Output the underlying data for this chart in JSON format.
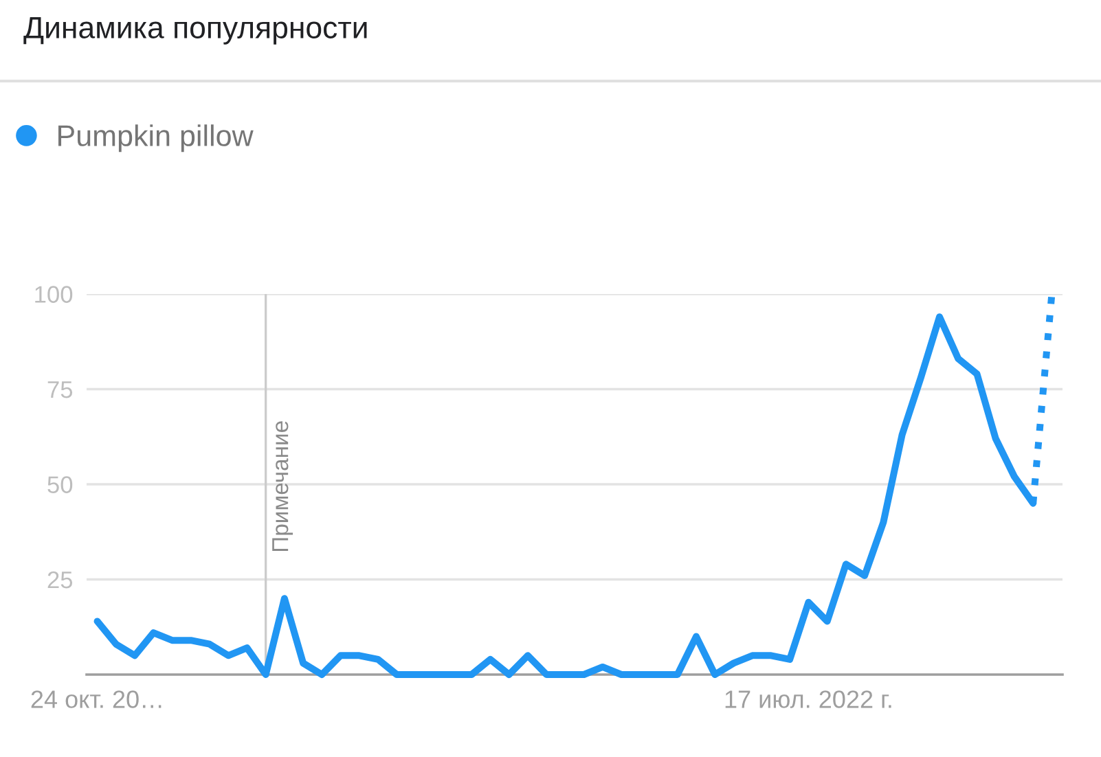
{
  "chart_data": {
    "type": "line",
    "title": "Динамика популярности",
    "x": [
      "2021-10-24",
      "2021-10-31",
      "2021-11-07",
      "2021-11-14",
      "2021-11-21",
      "2021-11-28",
      "2021-12-05",
      "2021-12-12",
      "2021-12-19",
      "2021-12-26",
      "2022-01-02",
      "2022-01-09",
      "2022-01-16",
      "2022-01-23",
      "2022-01-30",
      "2022-02-06",
      "2022-02-13",
      "2022-02-20",
      "2022-02-27",
      "2022-03-06",
      "2022-03-13",
      "2022-03-20",
      "2022-03-27",
      "2022-04-03",
      "2022-04-10",
      "2022-04-17",
      "2022-04-24",
      "2022-05-01",
      "2022-05-08",
      "2022-05-15",
      "2022-05-22",
      "2022-05-29",
      "2022-06-05",
      "2022-06-12",
      "2022-06-19",
      "2022-06-26",
      "2022-07-03",
      "2022-07-10",
      "2022-07-17",
      "2022-07-24",
      "2022-07-31",
      "2022-08-07",
      "2022-08-14",
      "2022-08-21",
      "2022-08-28",
      "2022-09-04",
      "2022-09-11",
      "2022-09-18",
      "2022-09-25",
      "2022-10-02",
      "2022-10-09",
      "2022-10-16"
    ],
    "series": [
      {
        "name": "Pumpkin pillow",
        "color": "#2196f3",
        "values": [
          14,
          8,
          5,
          11,
          9,
          9,
          8,
          5,
          7,
          0,
          20,
          3,
          0,
          5,
          5,
          4,
          0,
          0,
          0,
          0,
          0,
          4,
          0,
          5,
          0,
          0,
          0,
          2,
          0,
          0,
          0,
          0,
          10,
          0,
          3,
          5,
          5,
          4,
          19,
          14,
          29,
          26,
          40,
          63,
          78,
          94,
          83,
          79,
          62,
          52,
          45,
          null
        ]
      },
      {
        "color": "#2196f3",
        "line_style": "dotted",
        "values": [
          null,
          null,
          null,
          null,
          null,
          null,
          null,
          null,
          null,
          null,
          null,
          null,
          null,
          null,
          null,
          null,
          null,
          null,
          null,
          null,
          null,
          null,
          null,
          null,
          null,
          null,
          null,
          null,
          null,
          null,
          null,
          null,
          null,
          null,
          null,
          null,
          null,
          null,
          null,
          null,
          null,
          null,
          null,
          null,
          null,
          null,
          null,
          null,
          null,
          null,
          45,
          100
        ]
      }
    ],
    "xlim": [
      "2021-10-20",
      "2022-10-20"
    ],
    "xticks": [
      {
        "value": "2021-10-24",
        "label": "24 окт. 20…"
      },
      {
        "value": "2022-07-17",
        "label": "17 июл. 2022 г."
      }
    ],
    "ylim": [
      0,
      100
    ],
    "yticks": [
      25,
      50,
      75,
      100
    ],
    "grid": "y",
    "legend": "top left",
    "line_style": "solid",
    "ref_lines": [
      {
        "axis": "x",
        "value": "2021-12-26",
        "label": "Примечание",
        "color": "#cccccc"
      }
    ]
  }
}
